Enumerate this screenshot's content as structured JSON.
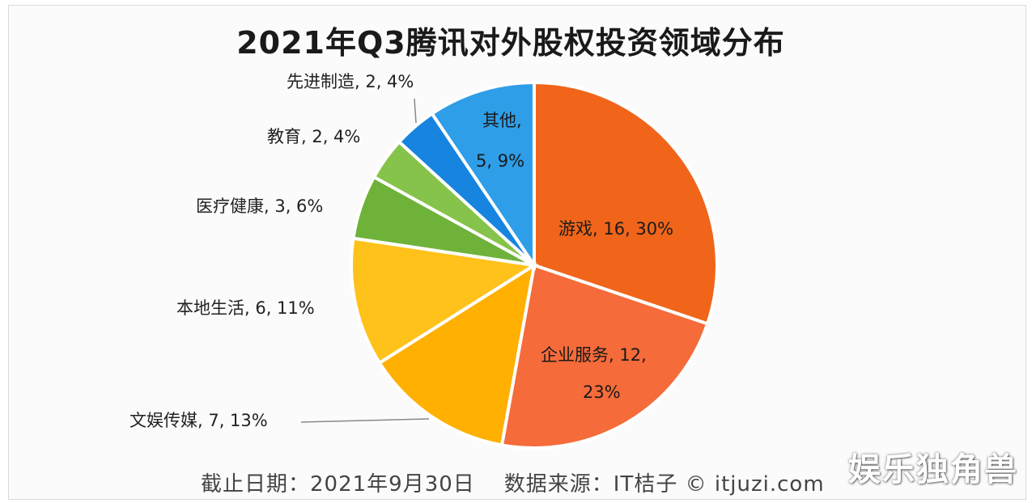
{
  "chart_data": {
    "type": "pie",
    "title": "2021年Q3腾讯对外股权投资领域分布",
    "slices": [
      {
        "name": "游戏",
        "value": 16,
        "percent": "30%",
        "color": "#f0651a"
      },
      {
        "name": "企业服务",
        "value": 12,
        "percent": "23%",
        "color": "#f56b3a"
      },
      {
        "name": "文娱传媒",
        "value": 7,
        "percent": "13%",
        "color": "#ffb000"
      },
      {
        "name": "本地生活",
        "value": 6,
        "percent": "11%",
        "color": "#ffc21a"
      },
      {
        "name": "医疗健康",
        "value": 3,
        "percent": "6%",
        "color": "#6fb23a"
      },
      {
        "name": "教育",
        "value": 2,
        "percent": "4%",
        "color": "#86c34a"
      },
      {
        "name": "先进制造",
        "value": 2,
        "percent": "4%",
        "color": "#1784e0"
      },
      {
        "name": "其他",
        "value": 5,
        "percent": "9%",
        "color": "#2f9ee8"
      }
    ],
    "labels": {
      "game": "游戏, 16, 30%",
      "enterprise_line1": "企业服务, 12,",
      "enterprise_line2": "23%",
      "culture": "文娱传媒, 7, 13%",
      "local": "本地生活, 6, 11%",
      "medical": "医疗健康, 3, 6%",
      "education": "教育, 2, 4%",
      "manufacturing": "先进制造, 2, 4%",
      "other_line1": "其他,",
      "other_line2": "5, 9%"
    }
  },
  "footer": {
    "date": "截止日期：2021年9月30日",
    "source": "数据来源：IT桔子 © itjuzi.com"
  },
  "watermark": "娱乐独角兽"
}
